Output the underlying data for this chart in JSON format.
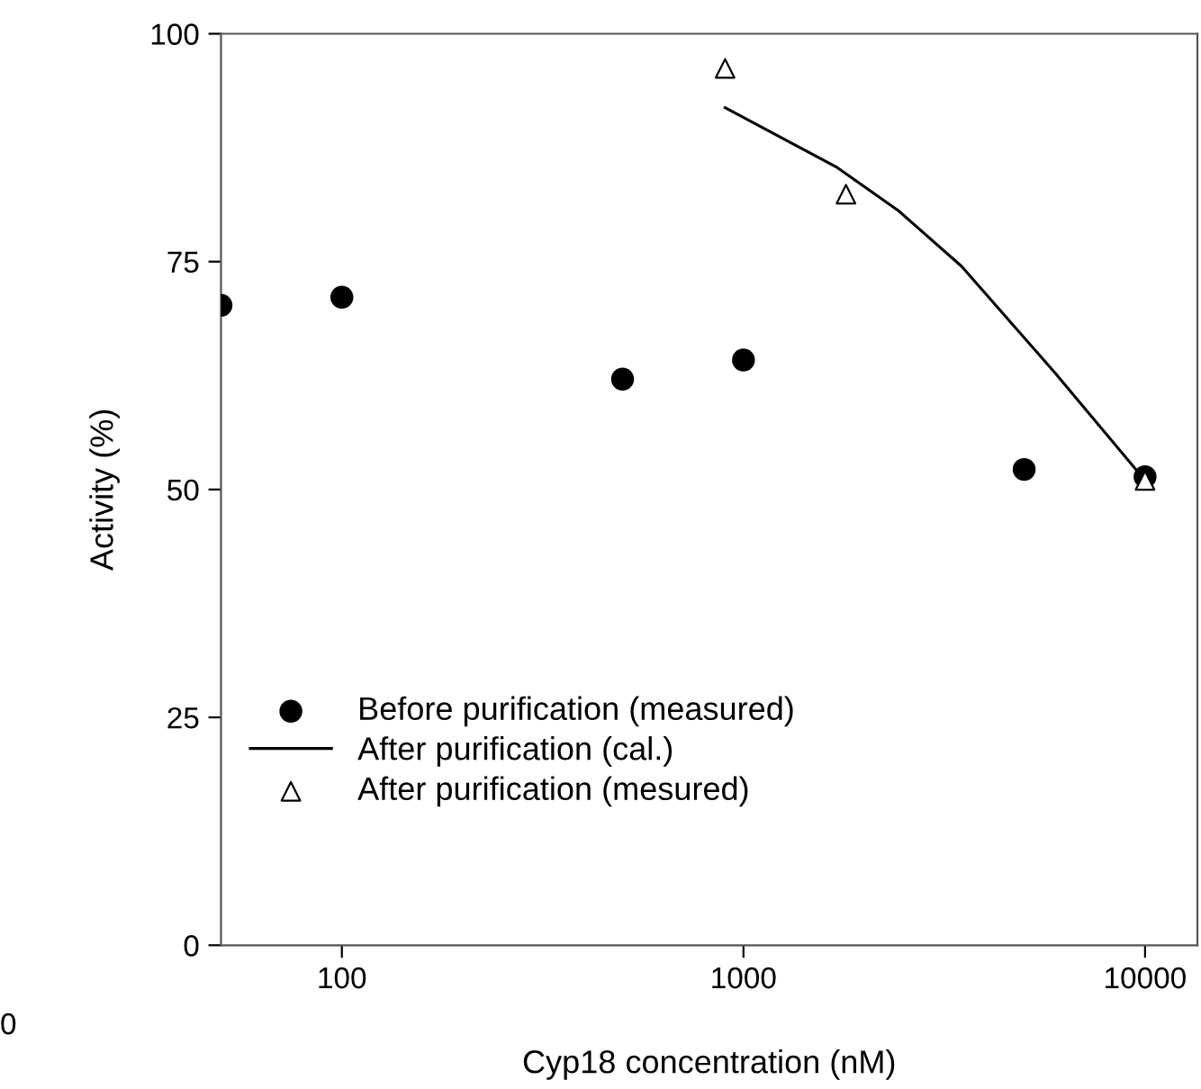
{
  "chart_data": {
    "type": "scatter",
    "xlabel": "Cyp18 concentration (nM)",
    "ylabel": "Activity (%)",
    "log": "x",
    "xlim": [
      50,
      13500
    ],
    "xticks": [
      100,
      1000,
      10000
    ],
    "ylim": [
      0,
      100
    ],
    "yticks": [
      0,
      25,
      50,
      75,
      100
    ],
    "grid": false,
    "legend": "bottom left",
    "annotations": [
      "0"
    ],
    "series": [
      {
        "name": "Before purification (measured)",
        "marker": "circle",
        "color": "#000000",
        "x": [
          50,
          100,
          500,
          1000,
          5000,
          10000
        ],
        "values": [
          70.2,
          71.1,
          62.1,
          64.2,
          52.2,
          51.4
        ]
      },
      {
        "name": "After purification (cal.)",
        "type": "line",
        "marker": "none",
        "line_style": "solid",
        "color": "#000000",
        "x": [
          900,
          1700,
          2430,
          3490,
          5940,
          10000
        ],
        "values": [
          91.9,
          85.4,
          80.6,
          74.5,
          62.9,
          51
        ]
      },
      {
        "name": "After purification (mesured)",
        "marker": "triangle",
        "color": "#000000",
        "x": [
          900,
          1800,
          10000
        ],
        "values": [
          96.2,
          82.4,
          51
        ]
      }
    ]
  }
}
